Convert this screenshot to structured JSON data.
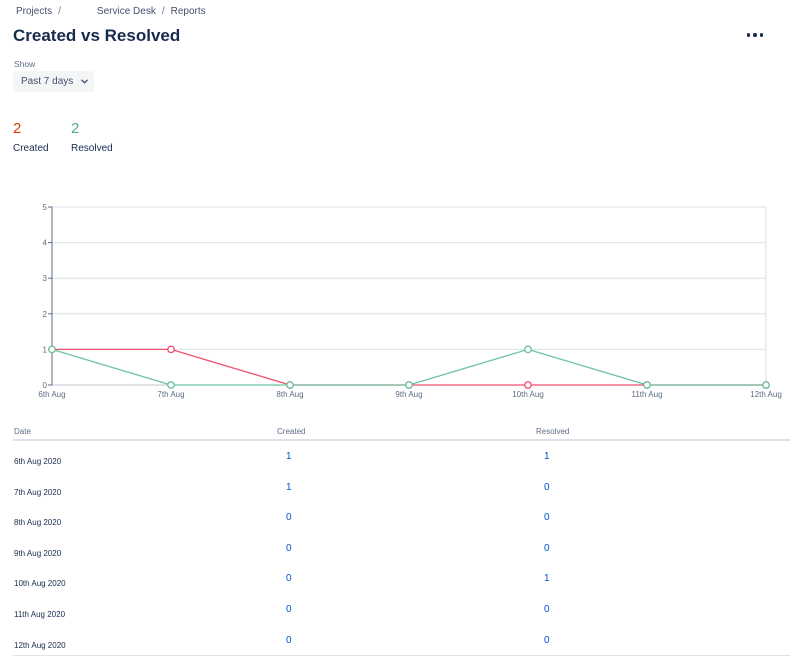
{
  "breadcrumb": {
    "projects": "Projects",
    "sep1": "/",
    "service_desk": "Service Desk",
    "sep2": "/",
    "reports": "Reports"
  },
  "page": {
    "title": "Created vs Resolved",
    "more_icon": "more-horizontal-icon"
  },
  "filter": {
    "label": "Show",
    "selected": "Past 7 days",
    "icon": "chevron-down-icon"
  },
  "summary": {
    "created": {
      "value": "2",
      "label": "Created",
      "color": "#de350b"
    },
    "resolved": {
      "value": "2",
      "label": "Resolved",
      "color": "#57a98a"
    }
  },
  "chart_data": {
    "type": "line",
    "x": [
      "6th Aug",
      "7th Aug",
      "8th Aug",
      "9th Aug",
      "10th Aug",
      "11th Aug",
      "12th Aug"
    ],
    "y_ticks": [
      "0",
      "1",
      "2",
      "3",
      "4",
      "5"
    ],
    "ylim": [
      0,
      5
    ],
    "grid": true,
    "series": [
      {
        "name": "Created",
        "color": "#f0506e",
        "values": [
          1,
          1,
          0,
          0,
          0,
          0,
          0
        ]
      },
      {
        "name": "Resolved",
        "color": "#6cc3a0",
        "values": [
          1,
          0,
          0,
          0,
          1,
          0,
          0
        ]
      }
    ]
  },
  "table": {
    "headers": {
      "date": "Date",
      "created": "Created",
      "resolved": "Resolved"
    },
    "rows": [
      {
        "date": "6th Aug 2020",
        "created": "1",
        "resolved": "1"
      },
      {
        "date": "7th Aug 2020",
        "created": "1",
        "resolved": "0"
      },
      {
        "date": "8th Aug 2020",
        "created": "0",
        "resolved": "0"
      },
      {
        "date": "9th Aug 2020",
        "created": "0",
        "resolved": "0"
      },
      {
        "date": "10th Aug 2020",
        "created": "0",
        "resolved": "1"
      },
      {
        "date": "11th Aug 2020",
        "created": "0",
        "resolved": "0"
      },
      {
        "date": "12th Aug 2020",
        "created": "0",
        "resolved": "0"
      }
    ]
  }
}
